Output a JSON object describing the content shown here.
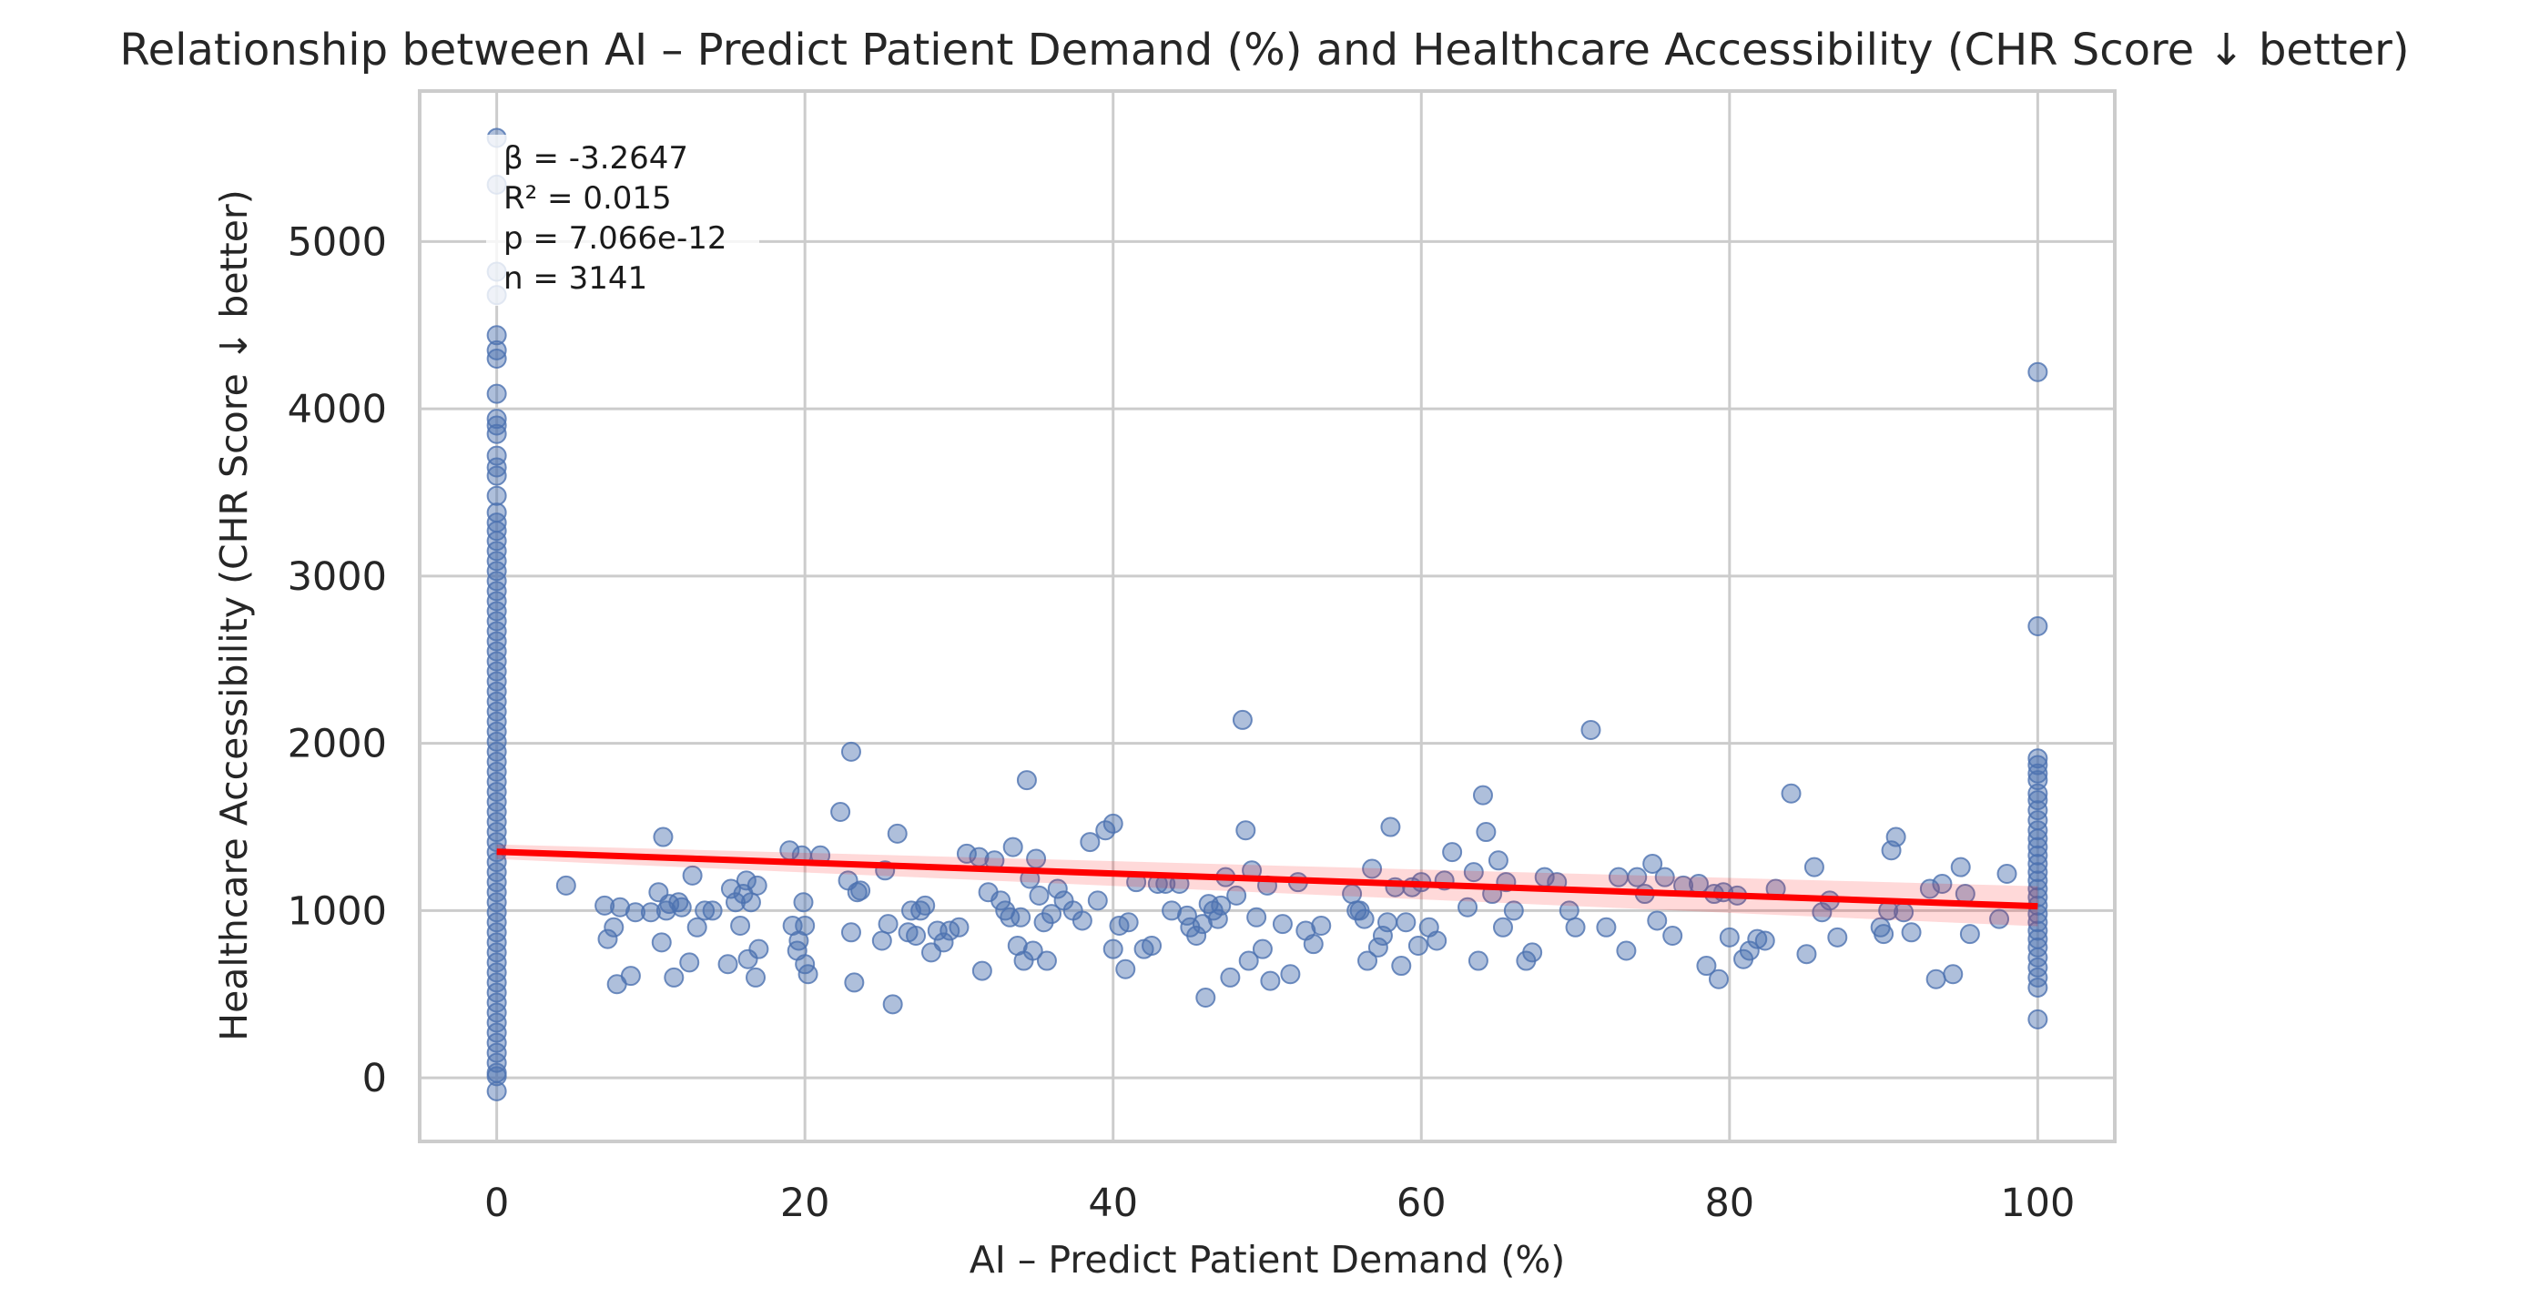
{
  "chart_data": {
    "type": "scatter",
    "title": "Relationship between AI – Predict Patient Demand (%) and Healthcare Accessibility (CHR Score ↓ better)",
    "xlabel": "AI – Predict Patient Demand (%)",
    "ylabel": "Healthcare Accessibility (CHR Score ↓ better)",
    "xlim": [
      -5,
      105
    ],
    "ylim": [
      -380,
      5900
    ],
    "xticks": [
      0,
      20,
      40,
      60,
      80,
      100
    ],
    "yticks": [
      0,
      1000,
      2000,
      3000,
      4000,
      5000
    ],
    "grid": true,
    "stats": {
      "beta": "β = -3.2647",
      "r2": "R² = 0.015",
      "p": "p = 7.066e-12",
      "n": "n = 3141"
    },
    "regression": {
      "color": "#ff0000",
      "x": [
        0,
        100
      ],
      "y": [
        1352,
        1026
      ]
    },
    "point_color": "#4c72b0",
    "points": [
      [
        0,
        5620
      ],
      [
        0,
        5340
      ],
      [
        0,
        4820
      ],
      [
        0,
        4680
      ],
      [
        0,
        4440
      ],
      [
        0,
        4350
      ],
      [
        0,
        4300
      ],
      [
        0,
        4090
      ],
      [
        0,
        3940
      ],
      [
        0,
        3900
      ],
      [
        0,
        3850
      ],
      [
        0,
        3720
      ],
      [
        0,
        3650
      ],
      [
        0,
        3600
      ],
      [
        0,
        3480
      ],
      [
        0,
        3380
      ],
      [
        0,
        3320
      ],
      [
        0,
        3270
      ],
      [
        0,
        3210
      ],
      [
        0,
        3150
      ],
      [
        0,
        3090
      ],
      [
        0,
        3030
      ],
      [
        0,
        2970
      ],
      [
        0,
        2910
      ],
      [
        0,
        2850
      ],
      [
        0,
        2790
      ],
      [
        0,
        2730
      ],
      [
        0,
        2670
      ],
      [
        0,
        2610
      ],
      [
        0,
        2550
      ],
      [
        0,
        2490
      ],
      [
        0,
        2430
      ],
      [
        0,
        2370
      ],
      [
        0,
        2310
      ],
      [
        0,
        2250
      ],
      [
        0,
        2190
      ],
      [
        0,
        2130
      ],
      [
        0,
        2070
      ],
      [
        0,
        2010
      ],
      [
        0,
        1950
      ],
      [
        0,
        1890
      ],
      [
        0,
        1830
      ],
      [
        0,
        1770
      ],
      [
        0,
        1710
      ],
      [
        0,
        1650
      ],
      [
        0,
        1590
      ],
      [
        0,
        1530
      ],
      [
        0,
        1470
      ],
      [
        0,
        1410
      ],
      [
        0,
        1350
      ],
      [
        0,
        1290
      ],
      [
        0,
        1230
      ],
      [
        0,
        1170
      ],
      [
        0,
        1110
      ],
      [
        0,
        1050
      ],
      [
        0,
        990
      ],
      [
        0,
        930
      ],
      [
        0,
        870
      ],
      [
        0,
        810
      ],
      [
        0,
        750
      ],
      [
        0,
        690
      ],
      [
        0,
        630
      ],
      [
        0,
        570
      ],
      [
        0,
        510
      ],
      [
        0,
        450
      ],
      [
        0,
        390
      ],
      [
        0,
        330
      ],
      [
        0,
        270
      ],
      [
        0,
        210
      ],
      [
        0,
        150
      ],
      [
        0,
        90
      ],
      [
        0,
        30
      ],
      [
        0,
        10
      ],
      [
        0,
        -80
      ],
      [
        4.5,
        1150
      ],
      [
        7,
        1030
      ],
      [
        7.2,
        830
      ],
      [
        7.6,
        900
      ],
      [
        7.8,
        560
      ],
      [
        8,
        1020
      ],
      [
        8.7,
        610
      ],
      [
        9,
        990
      ],
      [
        10,
        990
      ],
      [
        10.5,
        1110
      ],
      [
        10.7,
        810
      ],
      [
        10.8,
        1440
      ],
      [
        11,
        1000
      ],
      [
        11.2,
        1040
      ],
      [
        11.5,
        600
      ],
      [
        11.8,
        1050
      ],
      [
        12,
        1020
      ],
      [
        12.5,
        690
      ],
      [
        12.7,
        1210
      ],
      [
        13,
        900
      ],
      [
        13.5,
        1000
      ],
      [
        14,
        1000
      ],
      [
        15,
        680
      ],
      [
        15.2,
        1130
      ],
      [
        15.5,
        1050
      ],
      [
        15.8,
        910
      ],
      [
        16,
        1100
      ],
      [
        16.2,
        1180
      ],
      [
        16.3,
        710
      ],
      [
        16.5,
        1050
      ],
      [
        16.8,
        600
      ],
      [
        16.9,
        1150
      ],
      [
        17,
        770
      ],
      [
        19,
        1360
      ],
      [
        19.2,
        910
      ],
      [
        19.5,
        760
      ],
      [
        19.6,
        820
      ],
      [
        19.8,
        1330
      ],
      [
        19.9,
        1050
      ],
      [
        20,
        910
      ],
      [
        20,
        680
      ],
      [
        20.2,
        620
      ],
      [
        21,
        1330
      ],
      [
        22.3,
        1590
      ],
      [
        22.8,
        1180
      ],
      [
        23,
        870
      ],
      [
        23,
        1950
      ],
      [
        23.2,
        570
      ],
      [
        23.4,
        1110
      ],
      [
        23.6,
        1120
      ],
      [
        25,
        820
      ],
      [
        25.2,
        1240
      ],
      [
        25.4,
        920
      ],
      [
        25.7,
        440
      ],
      [
        26,
        1460
      ],
      [
        26.7,
        870
      ],
      [
        26.9,
        1000
      ],
      [
        27.2,
        850
      ],
      [
        27.5,
        1000
      ],
      [
        27.8,
        1030
      ],
      [
        28.2,
        750
      ],
      [
        28.6,
        880
      ],
      [
        29,
        810
      ],
      [
        29.4,
        880
      ],
      [
        30,
        900
      ],
      [
        30.5,
        1340
      ],
      [
        31.3,
        1320
      ],
      [
        31.5,
        640
      ],
      [
        31.9,
        1110
      ],
      [
        32.3,
        1300
      ],
      [
        32.7,
        1060
      ],
      [
        33,
        1000
      ],
      [
        33.3,
        960
      ],
      [
        33.5,
        1380
      ],
      [
        33.8,
        790
      ],
      [
        34,
        960
      ],
      [
        34.2,
        700
      ],
      [
        34.4,
        1780
      ],
      [
        34.6,
        1190
      ],
      [
        34.8,
        760
      ],
      [
        35,
        1310
      ],
      [
        35.2,
        1090
      ],
      [
        35.5,
        930
      ],
      [
        35.7,
        700
      ],
      [
        36,
        980
      ],
      [
        36.4,
        1130
      ],
      [
        36.8,
        1060
      ],
      [
        37.4,
        1000
      ],
      [
        38,
        940
      ],
      [
        38.5,
        1410
      ],
      [
        39,
        1060
      ],
      [
        39.5,
        1480
      ],
      [
        40,
        1520
      ],
      [
        40,
        770
      ],
      [
        40.4,
        910
      ],
      [
        40.8,
        650
      ],
      [
        41,
        930
      ],
      [
        41.5,
        1170
      ],
      [
        42,
        770
      ],
      [
        42.5,
        790
      ],
      [
        42.9,
        1160
      ],
      [
        43.4,
        1160
      ],
      [
        43.8,
        1000
      ],
      [
        44.3,
        1160
      ],
      [
        44.8,
        970
      ],
      [
        45,
        900
      ],
      [
        45.4,
        850
      ],
      [
        45.8,
        920
      ],
      [
        46,
        480
      ],
      [
        46.2,
        1040
      ],
      [
        46.5,
        1000
      ],
      [
        46.8,
        950
      ],
      [
        47,
        1030
      ],
      [
        47.3,
        1200
      ],
      [
        47.6,
        600
      ],
      [
        48,
        1090
      ],
      [
        48.4,
        2140
      ],
      [
        48.6,
        1480
      ],
      [
        48.8,
        700
      ],
      [
        49,
        1240
      ],
      [
        49.3,
        960
      ],
      [
        49.7,
        770
      ],
      [
        50,
        1150
      ],
      [
        50.2,
        580
      ],
      [
        51,
        920
      ],
      [
        51.5,
        620
      ],
      [
        52,
        1170
      ],
      [
        52.5,
        880
      ],
      [
        53,
        800
      ],
      [
        53.5,
        910
      ],
      [
        55.5,
        1100
      ],
      [
        55.8,
        1000
      ],
      [
        56,
        1000
      ],
      [
        56.3,
        950
      ],
      [
        56.5,
        700
      ],
      [
        56.8,
        1250
      ],
      [
        57.2,
        780
      ],
      [
        57.5,
        850
      ],
      [
        57.8,
        930
      ],
      [
        58,
        1500
      ],
      [
        58.3,
        1140
      ],
      [
        58.7,
        670
      ],
      [
        59,
        930
      ],
      [
        59.4,
        1140
      ],
      [
        59.8,
        790
      ],
      [
        60,
        1170
      ],
      [
        60.5,
        900
      ],
      [
        61,
        820
      ],
      [
        61.5,
        1180
      ],
      [
        62,
        1350
      ],
      [
        63,
        1020
      ],
      [
        63.4,
        1230
      ],
      [
        63.7,
        700
      ],
      [
        64,
        1690
      ],
      [
        64.2,
        1470
      ],
      [
        64.6,
        1100
      ],
      [
        65,
        1300
      ],
      [
        65.3,
        900
      ],
      [
        65.5,
        1170
      ],
      [
        66,
        1000
      ],
      [
        66.8,
        700
      ],
      [
        67.2,
        750
      ],
      [
        68,
        1200
      ],
      [
        68.8,
        1170
      ],
      [
        69.6,
        1000
      ],
      [
        70,
        900
      ],
      [
        71,
        2080
      ],
      [
        72,
        900
      ],
      [
        72.8,
        1200
      ],
      [
        73.3,
        760
      ],
      [
        74,
        1200
      ],
      [
        74.5,
        1100
      ],
      [
        75,
        1280
      ],
      [
        75.3,
        940
      ],
      [
        75.8,
        1200
      ],
      [
        76.3,
        850
      ],
      [
        77,
        1150
      ],
      [
        78,
        1160
      ],
      [
        78.5,
        670
      ],
      [
        79,
        1100
      ],
      [
        79.3,
        590
      ],
      [
        79.6,
        1110
      ],
      [
        80,
        840
      ],
      [
        80.5,
        1090
      ],
      [
        80.9,
        710
      ],
      [
        81.3,
        760
      ],
      [
        81.8,
        830
      ],
      [
        82.3,
        820
      ],
      [
        83,
        1130
      ],
      [
        84,
        1700
      ],
      [
        85,
        740
      ],
      [
        85.5,
        1260
      ],
      [
        86,
        990
      ],
      [
        86.5,
        1060
      ],
      [
        87,
        840
      ],
      [
        89.8,
        900
      ],
      [
        90,
        860
      ],
      [
        90.3,
        1000
      ],
      [
        90.5,
        1360
      ],
      [
        90.8,
        1440
      ],
      [
        91.3,
        990
      ],
      [
        91.8,
        870
      ],
      [
        93,
        1130
      ],
      [
        93.4,
        590
      ],
      [
        93.8,
        1160
      ],
      [
        94.5,
        620
      ],
      [
        95,
        1260
      ],
      [
        95.3,
        1100
      ],
      [
        95.6,
        860
      ],
      [
        97.5,
        950
      ],
      [
        98,
        1220
      ],
      [
        100,
        4220
      ],
      [
        100,
        2700
      ],
      [
        100,
        1910
      ],
      [
        100,
        1870
      ],
      [
        100,
        1820
      ],
      [
        100,
        1780
      ],
      [
        100,
        1700
      ],
      [
        100,
        1660
      ],
      [
        100,
        1600
      ],
      [
        100,
        1540
      ],
      [
        100,
        1480
      ],
      [
        100,
        1430
      ],
      [
        100,
        1380
      ],
      [
        100,
        1330
      ],
      [
        100,
        1280
      ],
      [
        100,
        1230
      ],
      [
        100,
        1180
      ],
      [
        100,
        1130
      ],
      [
        100,
        1080
      ],
      [
        100,
        1030
      ],
      [
        100,
        980
      ],
      [
        100,
        930
      ],
      [
        100,
        880
      ],
      [
        100,
        830
      ],
      [
        100,
        780
      ],
      [
        100,
        720
      ],
      [
        100,
        660
      ],
      [
        100,
        600
      ],
      [
        100,
        540
      ],
      [
        100,
        350
      ]
    ]
  }
}
